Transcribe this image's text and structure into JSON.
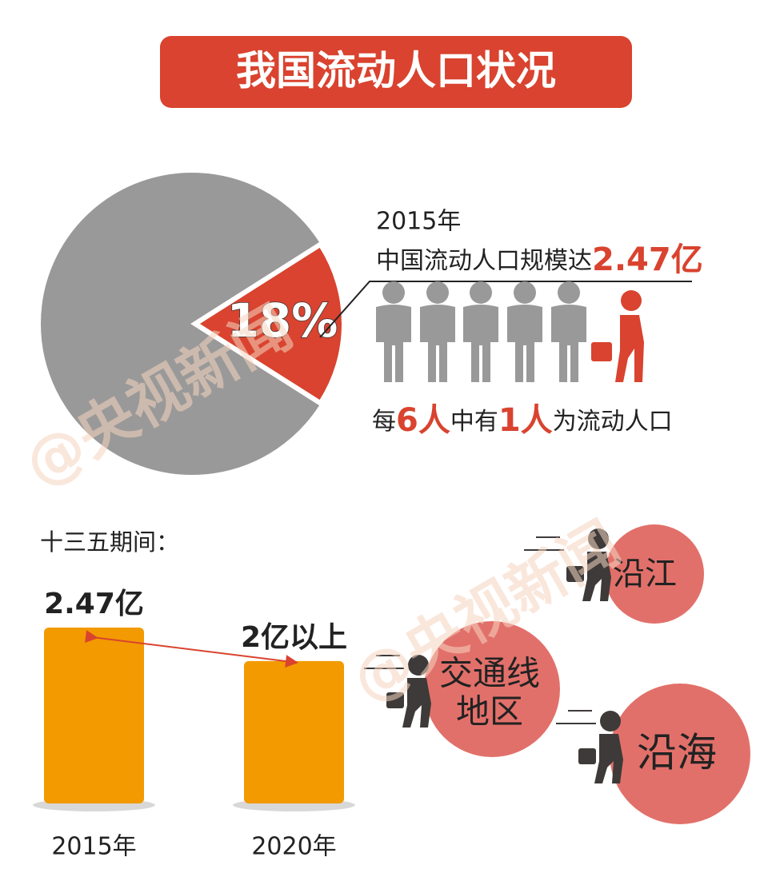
{
  "title": "我国流动人口状况",
  "pie_note": {
    "year": "2015年",
    "line": "中国流动人口规模达",
    "amount": "2.47亿"
  },
  "ratio": [
    "每",
    "6人",
    "中有",
    "1人",
    "为流动人口"
  ],
  "period": "十三五期间：",
  "regions": [
    [
      "沿江"
    ],
    [
      "交通线",
      "地区"
    ],
    [
      "沿海"
    ]
  ],
  "watermark": "@央视新闻",
  "chart_data": [
    {
      "type": "pie",
      "values": [
        18,
        82
      ],
      "value_labels": [
        "18%",
        null
      ],
      "colors": [
        "#d9432f",
        "#9a9999"
      ]
    },
    {
      "type": "bar",
      "categories": [
        "2015年",
        "2020年"
      ],
      "values": [
        2.47,
        2
      ],
      "value_labels": [
        "2.47亿",
        "2亿以上"
      ],
      "color": "#f29a00"
    }
  ]
}
